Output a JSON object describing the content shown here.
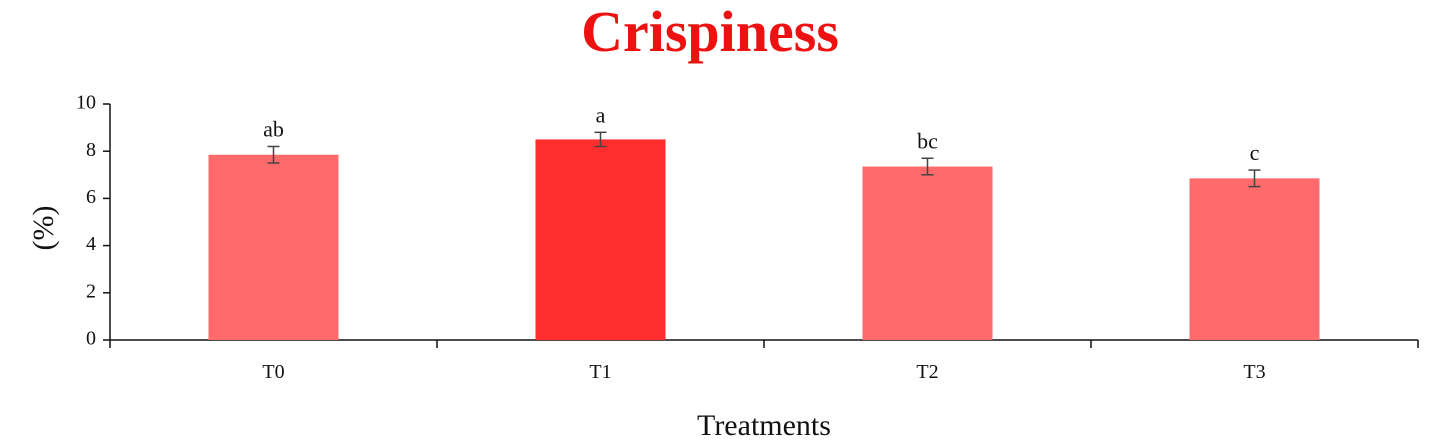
{
  "chart_data": {
    "type": "bar",
    "title": "Crispiness",
    "xlabel": "Treatments",
    "ylabel": "(%)",
    "ylim": [
      0,
      10
    ],
    "yticks": [
      0,
      2,
      4,
      6,
      8,
      10
    ],
    "categories": [
      "T0",
      "T1",
      "T2",
      "T3"
    ],
    "values": [
      7.85,
      8.5,
      7.35,
      6.85
    ],
    "errors": [
      0.35,
      0.3,
      0.35,
      0.35
    ],
    "significance_letters": [
      "ab",
      "a",
      "bc",
      "c"
    ],
    "bar_colors": [
      "#ff6b6b",
      "#ff2e2e",
      "#ff6b6b",
      "#ff6b6b"
    ],
    "grid": false,
    "legend": "none"
  },
  "colors": {
    "title": "#ee1111",
    "axis": "#111111",
    "error_bar": "#444444"
  }
}
